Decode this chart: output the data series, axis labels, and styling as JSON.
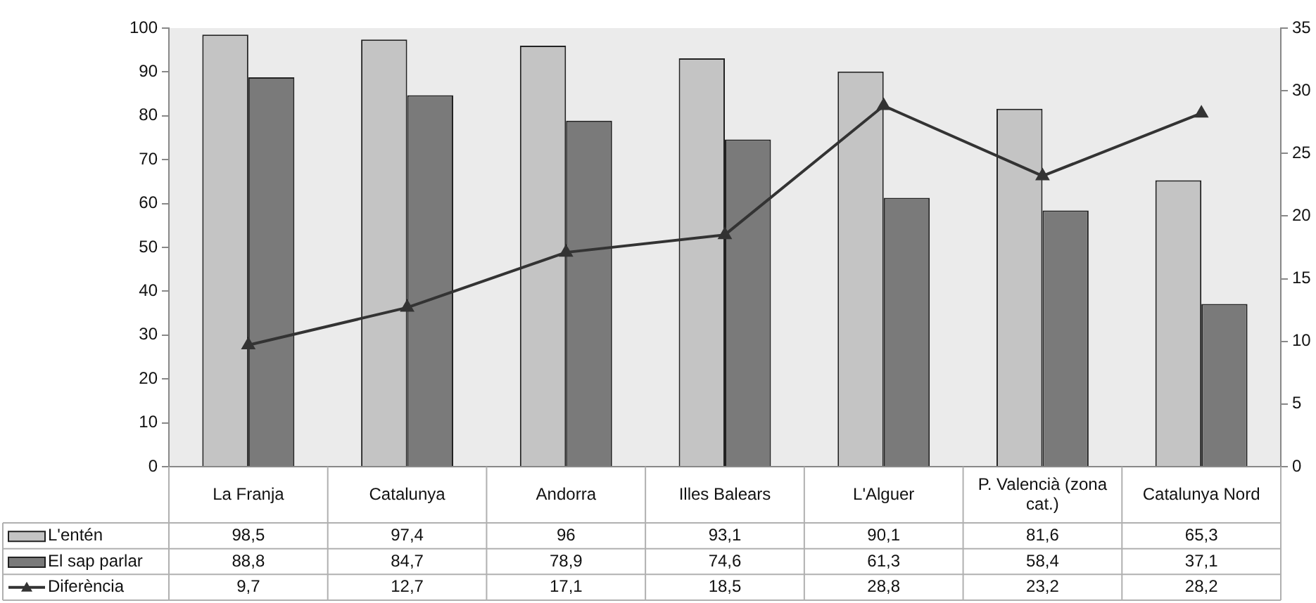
{
  "chart_data": {
    "type": "bar",
    "categories": [
      "La Franja",
      "Catalunya",
      "Andorra",
      "Illes Balears",
      "L'Alguer",
      "P. Valencià (zona cat.)",
      "Catalunya Nord"
    ],
    "series": [
      {
        "name": "L'entén",
        "color": "#c4c4c4",
        "values": [
          98.5,
          97.4,
          96,
          93.1,
          90.1,
          81.6,
          65.3
        ],
        "value_labels": [
          "98,5",
          "97,4",
          "96",
          "93,1",
          "90,1",
          "81,6",
          "65,3"
        ]
      },
      {
        "name": "El sap parlar",
        "color": "#7a7a7a",
        "values": [
          88.8,
          84.7,
          78.9,
          74.6,
          61.3,
          58.4,
          37.1
        ],
        "value_labels": [
          "88,8",
          "84,7",
          "78,9",
          "74,6",
          "61,3",
          "58,4",
          "37,1"
        ]
      },
      {
        "name": "Diferència",
        "type": "line",
        "axis": "y2",
        "color": "#333333",
        "marker": "triangle",
        "line_style": "solid",
        "values": [
          9.7,
          12.7,
          17.1,
          18.5,
          28.8,
          23.2,
          28.2
        ],
        "value_labels": [
          "9,7",
          "12,7",
          "17,1",
          "18,5",
          "28,8",
          "23,2",
          "28,2"
        ]
      }
    ],
    "ylim": [
      0,
      100
    ],
    "yticks": [
      0,
      10,
      20,
      30,
      40,
      50,
      60,
      70,
      80,
      90,
      100
    ],
    "y2lim": [
      0,
      35
    ],
    "y2ticks": [
      0,
      5,
      10,
      15,
      20,
      25,
      30,
      35
    ],
    "grid": false,
    "legend": "bottom left"
  }
}
